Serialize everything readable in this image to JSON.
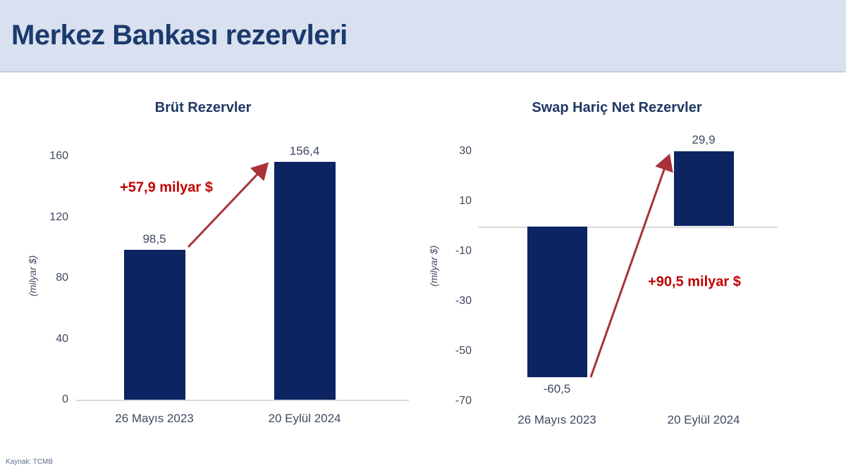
{
  "header": {
    "title": "Merkez Bankası rezervleri"
  },
  "footer": {
    "source": "Kaynak: TCMB"
  },
  "chart_data": [
    {
      "type": "bar",
      "title": "Brüt Rezervler",
      "xlabel": "",
      "ylabel": "(milyar $)",
      "categories": [
        "26 Mayıs 2023",
        "20 Eylül 2024"
      ],
      "values": [
        98.5,
        156.4
      ],
      "value_labels": [
        "98,5",
        "156,4"
      ],
      "yticks": [
        0,
        40,
        80,
        120,
        160
      ],
      "ylim": [
        0,
        160
      ],
      "grid": false,
      "legend": "none",
      "annotation": "+57,9 milyar $",
      "bar_color": "#0d2463"
    },
    {
      "type": "bar",
      "title": "Swap Hariç Net Rezervler",
      "xlabel": "",
      "ylabel": "(milyar $)",
      "categories": [
        "26 Mayıs 2023",
        "20 Eylül 2024"
      ],
      "values": [
        -60.5,
        29.9
      ],
      "value_labels": [
        "-60,5",
        "29,9"
      ],
      "yticks": [
        30,
        10,
        -10,
        -30,
        -50,
        -70
      ],
      "ylim": [
        -70,
        30
      ],
      "grid": false,
      "legend": "none",
      "annotation": "+90,5 milyar $",
      "bar_color": "#0d2463"
    }
  ],
  "colors": {
    "header_bg": "#d9e1f0",
    "title": "#1b3a6d",
    "chart_title": "#1f3864",
    "bar": "#0d2463",
    "annotation_red": "#c00000",
    "arrow_red": "#a93239",
    "axis_line": "#d9d9d9",
    "tick_text": "#3f4a5f",
    "source_text": "#5d6c8c"
  }
}
